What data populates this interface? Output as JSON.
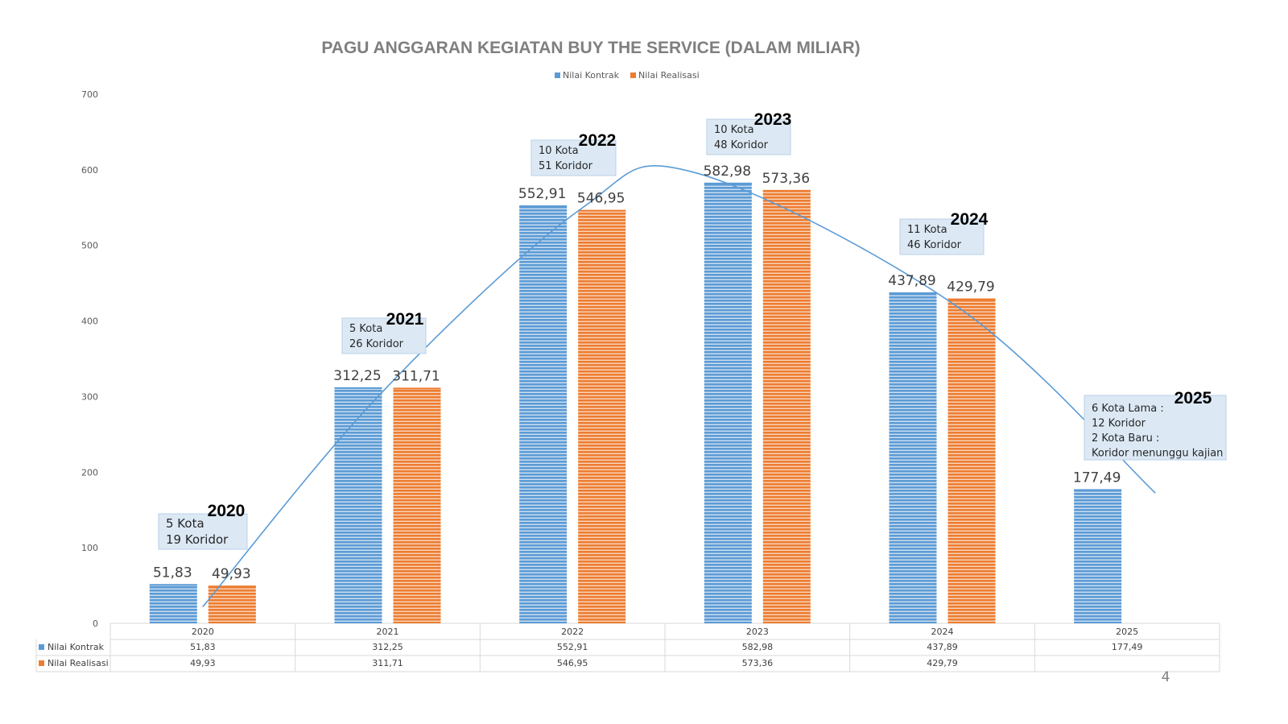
{
  "chart_data": {
    "type": "bar",
    "title": "PAGU ANGGARAN KEGIATAN BUY THE SERVICE (DALAM MILIAR)",
    "categories": [
      "2020",
      "2021",
      "2022",
      "2023",
      "2024",
      "2025"
    ],
    "series": [
      {
        "name": "Nilai Kontrak",
        "color": "#5b9bd5",
        "values": [
          51.83,
          312.25,
          552.91,
          582.98,
          437.89,
          177.49
        ],
        "labels": [
          "51,83",
          "312,25",
          "552,91",
          "582,98",
          "437,89",
          "177,49"
        ]
      },
      {
        "name": "Nilai Realisasi",
        "color": "#ed7d31",
        "values": [
          49.93,
          311.71,
          546.95,
          573.36,
          429.79,
          null
        ],
        "labels": [
          "49,93",
          "311,71",
          "546,95",
          "573,36",
          "429,79",
          ""
        ]
      }
    ],
    "ylim": [
      0,
      700
    ],
    "yticks": [
      "0",
      "100",
      "200",
      "300",
      "400",
      "500",
      "600",
      "700"
    ],
    "legend_position": "top",
    "grid": false,
    "data_table": true,
    "trend_curve": true,
    "callouts": [
      {
        "year": "2020",
        "lines": [
          "5 Kota",
          "19 Koridor"
        ]
      },
      {
        "year": "2021",
        "lines": [
          "5 Kota",
          "26 Koridor"
        ]
      },
      {
        "year": "2022",
        "lines": [
          "10 Kota",
          "51 Koridor"
        ]
      },
      {
        "year": "2023",
        "lines": [
          "10 Kota",
          "48 Koridor"
        ]
      },
      {
        "year": "2024",
        "lines": [
          "11 Kota",
          "46 Koridor"
        ]
      },
      {
        "year": "2025",
        "lines": [
          "6 Kota Lama :",
          "12 Koridor",
          "2 Kota Baru :",
          "Koridor menunggu kajian"
        ]
      }
    ]
  },
  "page_number": "4"
}
